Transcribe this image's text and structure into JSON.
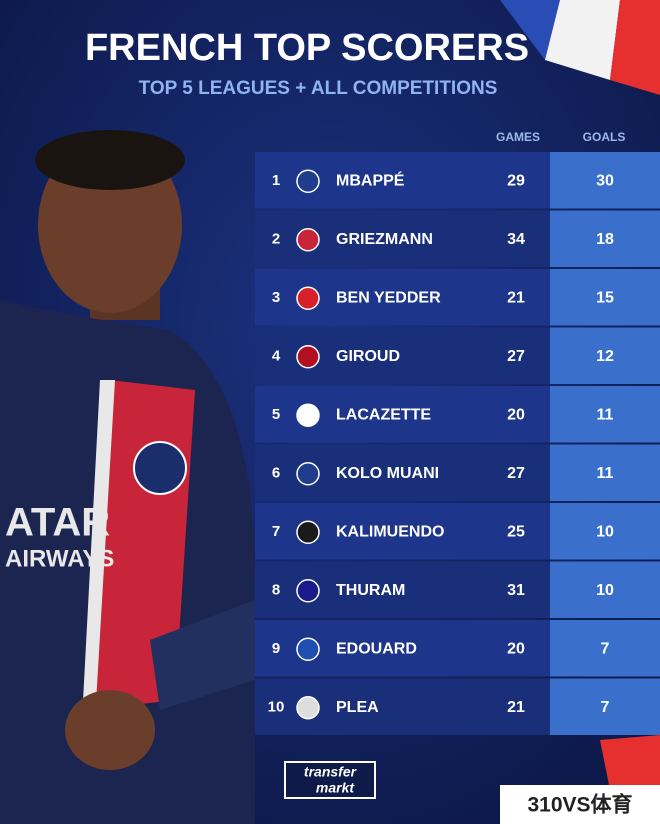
{
  "header": {
    "title": "FRENCH TOP SCORERS",
    "subtitle": "TOP 5 LEAGUES + ALL COMPETITIONS"
  },
  "table": {
    "columns": [
      "GAMES",
      "GOALS"
    ],
    "rows": [
      [
        1,
        "MBAPPÉ",
        29,
        30
      ],
      [
        2,
        "GRIEZMANN",
        34,
        18
      ],
      [
        3,
        "BEN YEDDER",
        21,
        15
      ],
      [
        4,
        "GIROUD",
        27,
        12
      ],
      [
        5,
        "LACAZETTE",
        20,
        11
      ],
      [
        6,
        "KOLO MUANI",
        27,
        11
      ],
      [
        7,
        "KALIMUENDO",
        25,
        10
      ],
      [
        8,
        "THURAM",
        31,
        10
      ],
      [
        9,
        "EDOUARD",
        20,
        7
      ],
      [
        10,
        "PLEA",
        21,
        7
      ]
    ]
  },
  "logo": {
    "line1": "transfer",
    "line2": "markt"
  },
  "watermark": "310VS体育"
}
